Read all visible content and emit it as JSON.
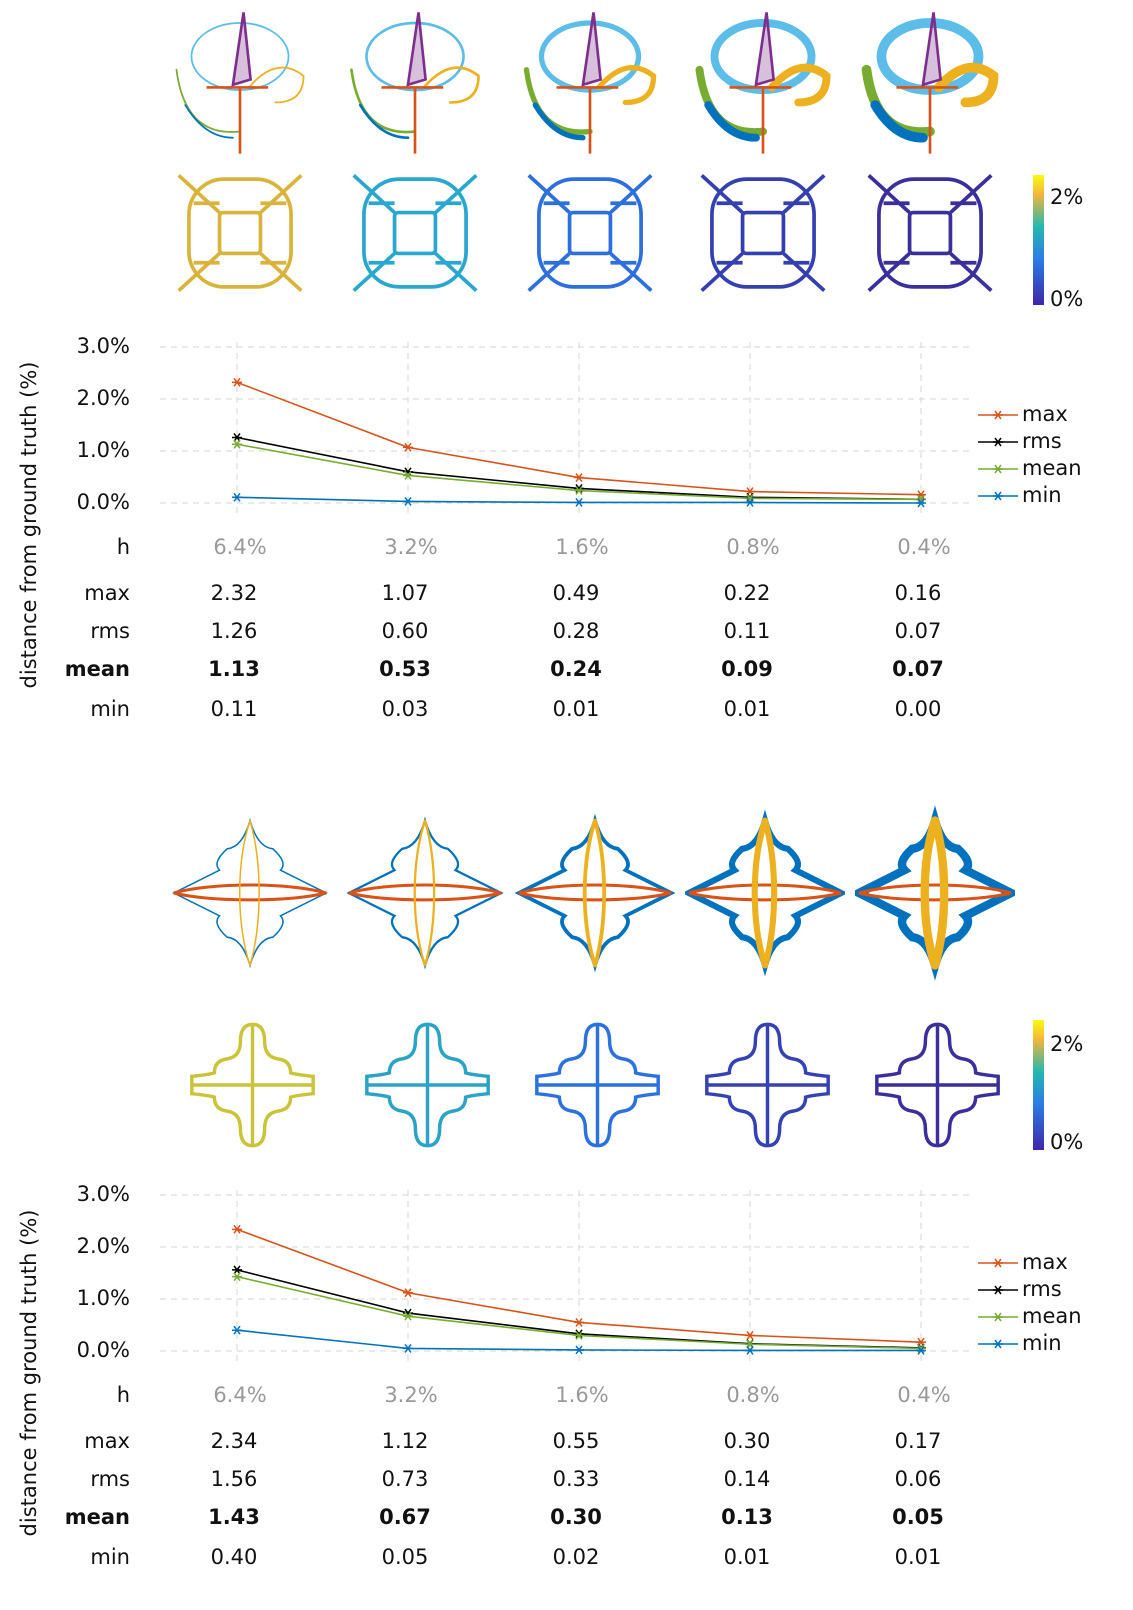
{
  "chart_data": [
    {
      "type": "line",
      "y_label": "distance from ground truth (%)",
      "x_label": "h",
      "categories": [
        "6.4%",
        "3.2%",
        "1.6%",
        "0.8%",
        "0.4%"
      ],
      "ylim": [
        0,
        3
      ],
      "yticks": [
        {
          "value": 0,
          "label": "0.0%"
        },
        {
          "value": 1,
          "label": "1.0%"
        },
        {
          "value": 2,
          "label": "2.0%"
        },
        {
          "value": 3,
          "label": "3.0%"
        }
      ],
      "grid": true,
      "legend": "right",
      "colorbar": {
        "labels": [
          "2%",
          "0%"
        ]
      },
      "series": [
        {
          "name": "max",
          "color": "#d95319",
          "values": [
            2.32,
            1.07,
            0.49,
            0.22,
            0.16
          ],
          "value_labels": [
            "2.32",
            "1.07",
            "0.49",
            "0.22",
            "0.16"
          ]
        },
        {
          "name": "rms",
          "color": "#000000",
          "values": [
            1.26,
            0.6,
            0.28,
            0.11,
            0.07
          ],
          "value_labels": [
            "1.26",
            "0.60",
            "0.28",
            "0.11",
            "0.07"
          ]
        },
        {
          "name": "mean",
          "color": "#77ac30",
          "emphasis": true,
          "values": [
            1.13,
            0.53,
            0.24,
            0.09,
            0.07
          ],
          "value_labels": [
            "1.13",
            "0.53",
            "0.24",
            "0.09",
            "0.07"
          ]
        },
        {
          "name": "min",
          "color": "#0072bd",
          "values": [
            0.11,
            0.03,
            0.01,
            0.01,
            0.0
          ],
          "value_labels": [
            "0.11",
            "0.03",
            "0.01",
            "0.01",
            "0.00"
          ]
        }
      ]
    },
    {
      "type": "line",
      "y_label": "distance from ground truth (%)",
      "x_label": "h",
      "categories": [
        "6.4%",
        "3.2%",
        "1.6%",
        "0.8%",
        "0.4%"
      ],
      "ylim": [
        0,
        3
      ],
      "yticks": [
        {
          "value": 0,
          "label": "0.0%"
        },
        {
          "value": 1,
          "label": "1.0%"
        },
        {
          "value": 2,
          "label": "2.0%"
        },
        {
          "value": 3,
          "label": "3.0%"
        }
      ],
      "grid": true,
      "legend": "right",
      "colorbar": {
        "labels": [
          "2%",
          "0%"
        ]
      },
      "series": [
        {
          "name": "max",
          "color": "#d95319",
          "values": [
            2.34,
            1.12,
            0.55,
            0.3,
            0.17
          ],
          "value_labels": [
            "2.34",
            "1.12",
            "0.55",
            "0.30",
            "0.17"
          ]
        },
        {
          "name": "rms",
          "color": "#000000",
          "values": [
            1.56,
            0.73,
            0.33,
            0.14,
            0.06
          ],
          "value_labels": [
            "1.56",
            "0.73",
            "0.33",
            "0.14",
            "0.06"
          ]
        },
        {
          "name": "mean",
          "color": "#77ac30",
          "emphasis": true,
          "values": [
            1.43,
            0.67,
            0.3,
            0.13,
            0.05
          ],
          "value_labels": [
            "1.43",
            "0.67",
            "0.30",
            "0.13",
            "0.05"
          ]
        },
        {
          "name": "min",
          "color": "#0072bd",
          "values": [
            0.4,
            0.05,
            0.02,
            0.01,
            0.01
          ],
          "value_labels": [
            "0.40",
            "0.05",
            "0.02",
            "0.01",
            "0.01"
          ]
        }
      ]
    }
  ]
}
